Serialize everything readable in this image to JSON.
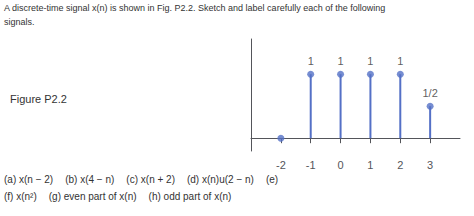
{
  "chart_data": {
    "type": "stem",
    "title": "Figure P2.2",
    "annotations": {
      "header": [
        "A discrete-time signal x(n) is shown in Fig. P2.2. Sketch and label carefully each of the following",
        "signals."
      ],
      "footer": [
        [
          "(a) x(n − 2)",
          "(b) x(4 − n)",
          "(c) x(n + 2)",
          "(d) x(n)u(2 − n)",
          "(e)"
        ],
        [
          "(f) x(n²)",
          "(g) even part of x(n)",
          "(h) odd part of x(n)"
        ]
      ]
    },
    "x": [
      -2,
      -1,
      0,
      1,
      2,
      3
    ],
    "values": [
      0,
      1,
      1,
      1,
      1,
      0.5
    ],
    "value_labels": [
      null,
      "1",
      "1",
      "1",
      "1",
      "1/2"
    ],
    "marker": "circle",
    "xlim": [
      -3.0,
      4.0
    ],
    "xticks": [
      -2,
      -1,
      0,
      1,
      2,
      3
    ],
    "ylim": [
      -0.2,
      1.55
    ],
    "tick_labels": "x",
    "grid": false
  }
}
